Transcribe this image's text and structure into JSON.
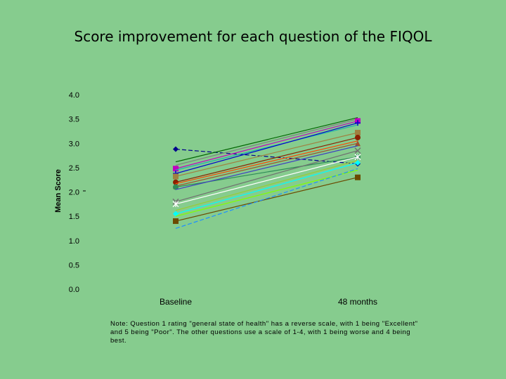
{
  "title": "Score improvement for each question of the FIQOL",
  "note": "Note: Question 1 rating \"general state of health\" has a reverse scale, with 1 being \"Excellent\" and 5 being \"Poor\". The other questions use a scale of 1-4, with 1 being worse and 4 being best.",
  "chart_data": {
    "type": "line",
    "title": "Score improvement for each question of the FIQOL",
    "xlabel": "",
    "ylabel": "Mean Score",
    "categories": [
      "Baseline",
      "48 months"
    ],
    "y_ticks": [
      "0.0",
      "0.5",
      "1.0",
      "1.5",
      "2.0",
      "2.5",
      "3.0",
      "3.5",
      "4.0"
    ],
    "ylim": [
      0,
      4
    ],
    "grid": false,
    "legend": "none",
    "series": [
      {
        "values": [
          2.88,
          2.58
        ],
        "color": "#00008b",
        "dash": true,
        "marker": "diamond"
      },
      {
        "values": [
          2.62,
          3.53
        ],
        "color": "#006400",
        "marker": "none"
      },
      {
        "values": [
          2.55,
          3.5
        ],
        "color": "#808080",
        "marker": "none"
      },
      {
        "values": [
          2.48,
          3.46
        ],
        "color": "#c000c0",
        "marker": "square"
      },
      {
        "values": [
          2.45,
          3.38
        ],
        "color": "#20b2aa",
        "marker": "none"
      },
      {
        "values": [
          2.38,
          3.42
        ],
        "color": "#0000cd",
        "marker": "plus"
      },
      {
        "values": [
          2.32,
          3.22
        ],
        "color": "#a08040",
        "marker": "square"
      },
      {
        "values": [
          2.2,
          3.12
        ],
        "color": "#8b2000",
        "marker": "circle"
      },
      {
        "values": [
          2.17,
          3.05
        ],
        "color": "#ff4500",
        "marker": "none"
      },
      {
        "values": [
          2.12,
          3.0
        ],
        "color": "#a0522d",
        "marker": "triangle"
      },
      {
        "values": [
          2.1,
          2.72
        ],
        "color": "#2e8b57",
        "marker": "circle"
      },
      {
        "values": [
          2.05,
          2.95
        ],
        "color": "#4040c0",
        "marker": "none"
      },
      {
        "values": [
          1.8,
          2.85
        ],
        "color": "#707070",
        "marker": "x"
      },
      {
        "values": [
          1.75,
          2.72
        ],
        "color": "#ffffff",
        "marker": "star"
      },
      {
        "values": [
          1.62,
          2.65
        ],
        "color": "#9acd32",
        "marker": "none"
      },
      {
        "values": [
          1.55,
          2.6
        ],
        "color": "#00ffff",
        "marker": "diamond"
      },
      {
        "values": [
          1.5,
          2.45
        ],
        "color": "#7fff00",
        "marker": "none"
      },
      {
        "values": [
          1.4,
          2.3
        ],
        "color": "#6b4a00",
        "marker": "square"
      },
      {
        "values": [
          1.25,
          2.48
        ],
        "color": "#1e90ff",
        "dash": true,
        "marker": "none"
      }
    ]
  }
}
